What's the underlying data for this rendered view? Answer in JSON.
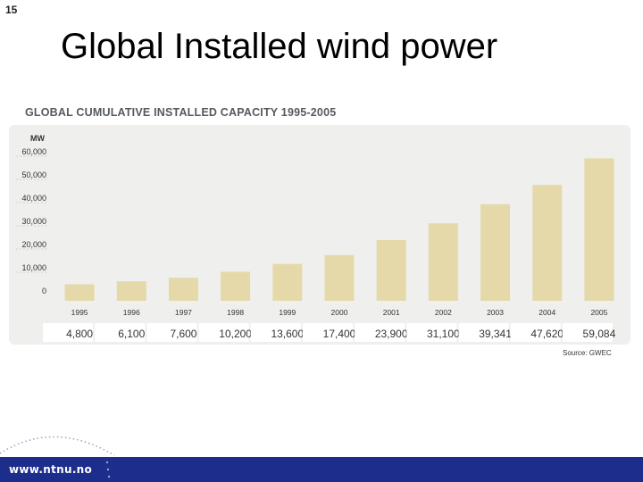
{
  "slide": {
    "number": "15",
    "title": "Global Installed wind power"
  },
  "footer": {
    "url": "www.ntnu.no"
  },
  "colors": {
    "bar": "#e6d9a9",
    "panel": "#efefed",
    "value_box": "#ffffff",
    "footer": "#1c2d8c"
  },
  "chart_data": {
    "type": "bar",
    "title": "GLOBAL CUMULATIVE INSTALLED CAPACITY 1995-2005",
    "ylabel": "MW",
    "ylim": [
      0,
      60000
    ],
    "yticks": [
      {
        "value": 0,
        "label": "0"
      },
      {
        "value": 10000,
        "label": "10,000"
      },
      {
        "value": 20000,
        "label": "20,000"
      },
      {
        "value": 30000,
        "label": "30,000"
      },
      {
        "value": 40000,
        "label": "40,000"
      },
      {
        "value": 50000,
        "label": "50,000"
      },
      {
        "value": 60000,
        "label": "60,000"
      }
    ],
    "grid": true,
    "categories": [
      "1995",
      "1996",
      "1997",
      "1998",
      "1999",
      "2000",
      "2001",
      "2002",
      "2003",
      "2004",
      "2005"
    ],
    "values": [
      4800,
      6100,
      7600,
      10200,
      13600,
      17400,
      23900,
      31100,
      39341,
      47620,
      59084
    ],
    "value_labels": [
      "4,800",
      "6,100",
      "7,600",
      "10,200",
      "13,600",
      "17,400",
      "23,900",
      "31,100",
      "39,341",
      "47,620",
      "59,084"
    ],
    "source": "Source: GWEC"
  }
}
